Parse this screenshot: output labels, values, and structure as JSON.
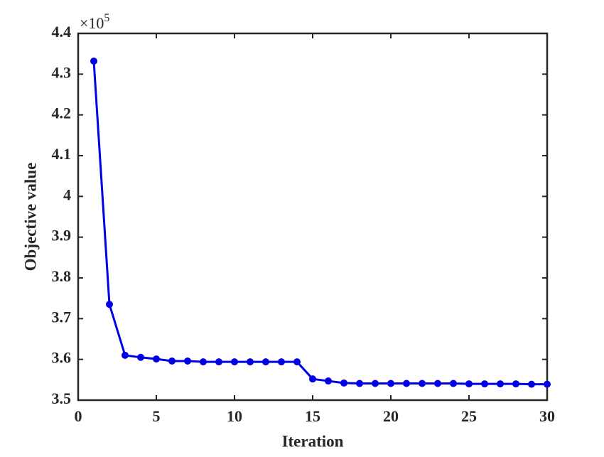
{
  "chart_data": {
    "type": "line",
    "xlabel": "Iteration",
    "ylabel": "Objective value",
    "ymultiplier": "×10",
    "ymultiplier_exponent": "5",
    "x": [
      1,
      2,
      3,
      4,
      5,
      6,
      7,
      8,
      9,
      10,
      11,
      12,
      13,
      14,
      15,
      16,
      17,
      18,
      19,
      20,
      21,
      22,
      23,
      24,
      25,
      26,
      27,
      28,
      29,
      30
    ],
    "series": [
      {
        "color": "#0000e6",
        "values": [
          4.332,
          3.735,
          3.61,
          3.605,
          3.601,
          3.596,
          3.596,
          3.594,
          3.594,
          3.594,
          3.594,
          3.594,
          3.594,
          3.594,
          3.552,
          3.547,
          3.542,
          3.541,
          3.541,
          3.541,
          3.541,
          3.541,
          3.541,
          3.541,
          3.54,
          3.54,
          3.54,
          3.54,
          3.539,
          3.539
        ]
      }
    ],
    "xlim": [
      0,
      30
    ],
    "xticks": [
      0,
      5,
      10,
      15,
      20,
      25,
      30
    ],
    "ylim": [
      3.5,
      4.4
    ],
    "yticks": [
      3.5,
      3.6,
      3.7,
      3.8,
      3.9,
      4,
      4.1,
      4.2,
      4.3,
      4.4
    ]
  }
}
